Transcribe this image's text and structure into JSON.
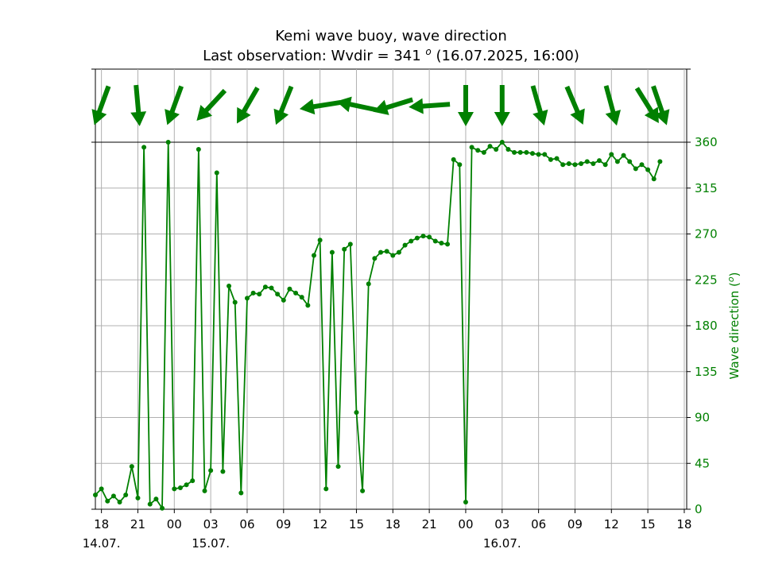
{
  "chart_data": {
    "type": "line",
    "title": "Kemi wave buoy, wave direction",
    "subtitle_prefix": "Last observation: Wvdir = 341 ",
    "subtitle_unit": "o",
    "subtitle_suffix": " (16.07.2025, 16:00)",
    "ylabel": "Wave direction (",
    "ylabel_unit": "o",
    "ylabel_close": ")",
    "ylim": [
      0,
      360
    ],
    "yticks": [
      0,
      45,
      90,
      135,
      180,
      225,
      270,
      315,
      360
    ],
    "xlim_hours": [
      17.5,
      66.2
    ],
    "xticks": [
      {
        "h": 18,
        "label": "18"
      },
      {
        "h": 21,
        "label": "21"
      },
      {
        "h": 24,
        "label": "00"
      },
      {
        "h": 27,
        "label": "03"
      },
      {
        "h": 30,
        "label": "06"
      },
      {
        "h": 33,
        "label": "09"
      },
      {
        "h": 36,
        "label": "12"
      },
      {
        "h": 39,
        "label": "15"
      },
      {
        "h": 42,
        "label": "18"
      },
      {
        "h": 45,
        "label": "21"
      },
      {
        "h": 48,
        "label": "00"
      },
      {
        "h": 51,
        "label": "03"
      },
      {
        "h": 54,
        "label": "06"
      },
      {
        "h": 57,
        "label": "09"
      },
      {
        "h": 60,
        "label": "12"
      },
      {
        "h": 63,
        "label": "15"
      },
      {
        "h": 66,
        "label": "18"
      }
    ],
    "date_labels": [
      {
        "h": 18,
        "label": "14.07."
      },
      {
        "h": 27,
        "label": "15.07."
      },
      {
        "h": 51,
        "label": "16.07."
      }
    ],
    "grid": true,
    "series_color": "#008000",
    "x_hours": [
      17.5,
      18.0,
      18.5,
      19.0,
      19.5,
      20.0,
      20.5,
      21.0,
      21.5,
      22.0,
      22.5,
      23.0,
      23.5,
      24.0,
      24.5,
      25.0,
      25.5,
      26.0,
      26.5,
      27.0,
      27.5,
      28.0,
      28.5,
      29.0,
      29.5,
      30.0,
      30.5,
      31.0,
      31.5,
      32.0,
      32.5,
      33.0,
      33.5,
      34.0,
      34.5,
      35.0,
      35.5,
      36.0,
      36.5,
      37.0,
      37.5,
      38.0,
      38.5,
      39.0,
      39.5,
      40.0,
      40.5,
      41.0,
      41.5,
      42.0,
      42.5,
      43.0,
      43.5,
      44.0,
      44.5,
      45.0,
      45.5,
      46.0,
      46.5,
      47.0,
      47.5,
      48.0,
      48.5,
      49.0,
      49.5,
      50.0,
      50.5,
      51.0,
      51.5,
      52.0,
      52.5,
      53.0,
      53.5,
      54.0,
      54.5,
      55.0,
      55.5,
      56.0,
      56.5,
      57.0,
      57.5,
      58.0,
      58.5,
      59.0,
      59.5,
      60.0,
      60.5,
      61.0,
      61.5,
      62.0,
      62.5,
      63.0,
      63.5,
      64.0
    ],
    "values": [
      14,
      20,
      8,
      13,
      7,
      14,
      42,
      11,
      355,
      5,
      10,
      1,
      360,
      20,
      21,
      24,
      28,
      353,
      18,
      38,
      330,
      37,
      219,
      203,
      16,
      207,
      212,
      211,
      218,
      217,
      211,
      205,
      216,
      212,
      208,
      200,
      249,
      264,
      20,
      252,
      42,
      255,
      260,
      95,
      18,
      221,
      246,
      252,
      253,
      249,
      252,
      259,
      263,
      266,
      268,
      267,
      263,
      261,
      260,
      343,
      338,
      7,
      355,
      352,
      350,
      356,
      353,
      360,
      353,
      350,
      350,
      350,
      349,
      348,
      348,
      343,
      344,
      338,
      339,
      338,
      339,
      341,
      339,
      342,
      338,
      348,
      341,
      347,
      341,
      334,
      338,
      333,
      324,
      341
    ],
    "arrow_hours": [
      18,
      21,
      24,
      27,
      30,
      33,
      36,
      39,
      42,
      45,
      48,
      51,
      54,
      57,
      60,
      63,
      64
    ],
    "arrow_directions": [
      20,
      355,
      20,
      43,
      30,
      22,
      81,
      102,
      73,
      86,
      360,
      360,
      344,
      337,
      345,
      328,
      341
    ]
  }
}
